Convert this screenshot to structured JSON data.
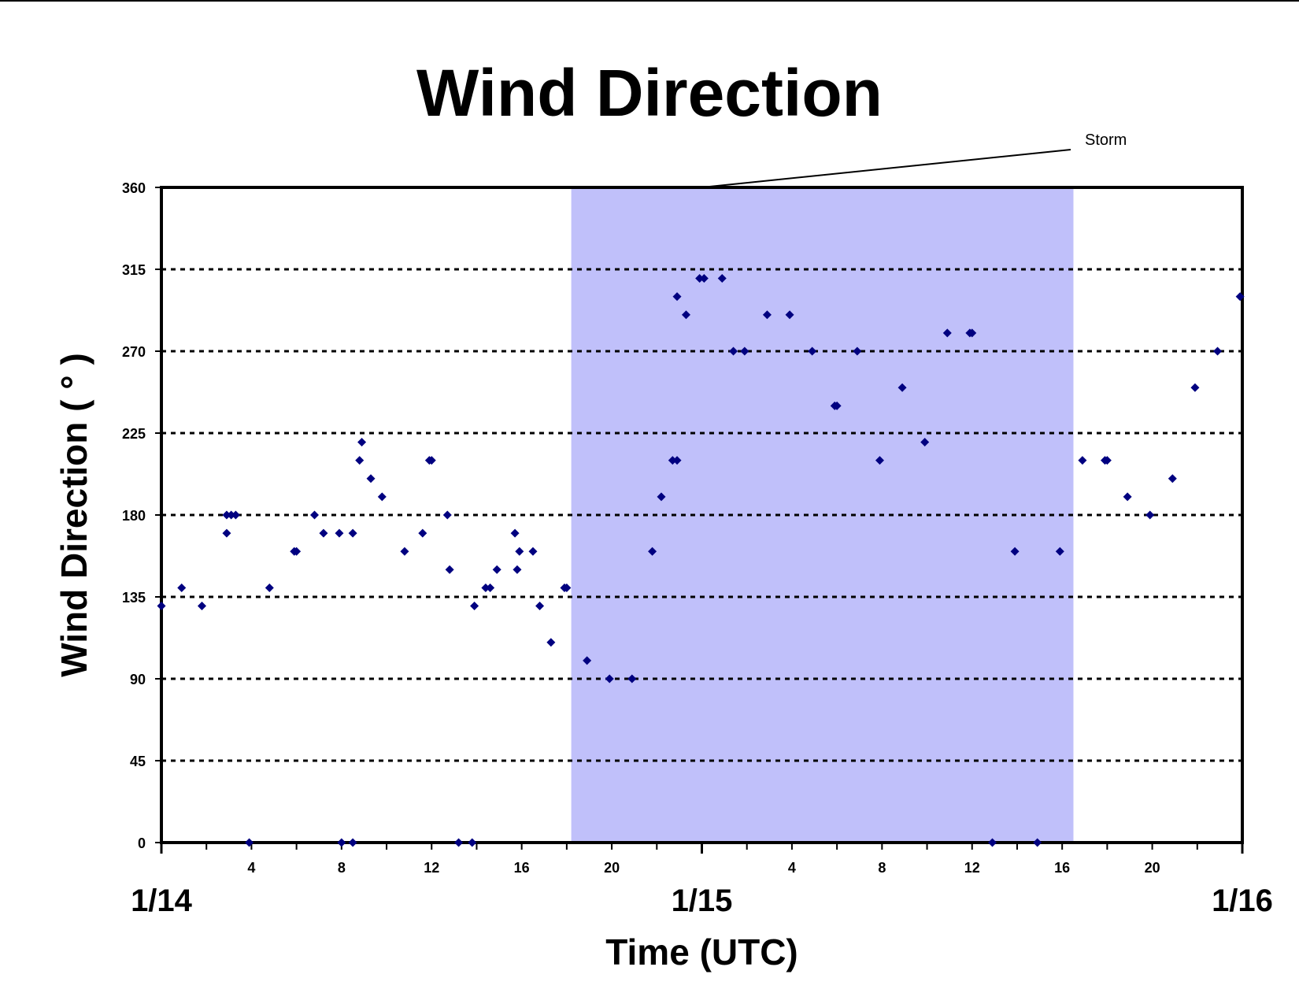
{
  "chart_data": {
    "type": "scatter",
    "title": "Wind Direction",
    "xlabel": "Time (UTC)",
    "ylabel": "Wind Direction ( ° )",
    "ylim": [
      0,
      360
    ],
    "y_ticks": [
      0,
      45,
      90,
      135,
      180,
      225,
      270,
      315,
      360
    ],
    "xlim_hours": [
      0,
      48
    ],
    "x_tick_labels": [
      {
        "hour": 4,
        "label": "4"
      },
      {
        "hour": 8,
        "label": "8"
      },
      {
        "hour": 12,
        "label": "12"
      },
      {
        "hour": 16,
        "label": "16"
      },
      {
        "hour": 20,
        "label": "20"
      },
      {
        "hour": 28,
        "label": "4"
      },
      {
        "hour": 32,
        "label": "8"
      },
      {
        "hour": 36,
        "label": "12"
      },
      {
        "hour": 40,
        "label": "16"
      },
      {
        "hour": 44,
        "label": "20"
      }
    ],
    "day_labels": [
      {
        "hour": 0,
        "label": "1/14"
      },
      {
        "hour": 24,
        "label": "1/15"
      },
      {
        "hour": 48,
        "label": "1/16"
      }
    ],
    "grid": "horizontal dotted",
    "annotation": {
      "text": "Storm",
      "start_hour": 18.2,
      "end_hour": 40.5
    },
    "colors": {
      "marker": "#000080",
      "storm_band": "#c0c0fa",
      "grid": "#000000"
    },
    "points": [
      {
        "x": 0.0,
        "y": 130
      },
      {
        "x": 0.9,
        "y": 140
      },
      {
        "x": 1.8,
        "y": 130
      },
      {
        "x": 2.9,
        "y": 170
      },
      {
        "x": 2.9,
        "y": 180
      },
      {
        "x": 3.1,
        "y": 180
      },
      {
        "x": 3.3,
        "y": 180
      },
      {
        "x": 3.9,
        "y": 0
      },
      {
        "x": 4.8,
        "y": 140
      },
      {
        "x": 5.9,
        "y": 160
      },
      {
        "x": 6.0,
        "y": 160
      },
      {
        "x": 6.8,
        "y": 180
      },
      {
        "x": 7.2,
        "y": 170
      },
      {
        "x": 7.9,
        "y": 170
      },
      {
        "x": 8.0,
        "y": 0
      },
      {
        "x": 8.5,
        "y": 0
      },
      {
        "x": 8.5,
        "y": 170
      },
      {
        "x": 8.8,
        "y": 210
      },
      {
        "x": 8.9,
        "y": 220
      },
      {
        "x": 9.3,
        "y": 200
      },
      {
        "x": 9.8,
        "y": 190
      },
      {
        "x": 10.8,
        "y": 160
      },
      {
        "x": 11.6,
        "y": 170
      },
      {
        "x": 11.9,
        "y": 210
      },
      {
        "x": 12.0,
        "y": 210
      },
      {
        "x": 12.7,
        "y": 180
      },
      {
        "x": 12.8,
        "y": 150
      },
      {
        "x": 13.2,
        "y": 0
      },
      {
        "x": 13.8,
        "y": 0
      },
      {
        "x": 13.9,
        "y": 130
      },
      {
        "x": 14.4,
        "y": 140
      },
      {
        "x": 14.6,
        "y": 140
      },
      {
        "x": 14.9,
        "y": 150
      },
      {
        "x": 15.7,
        "y": 170
      },
      {
        "x": 15.8,
        "y": 150
      },
      {
        "x": 15.9,
        "y": 160
      },
      {
        "x": 16.5,
        "y": 160
      },
      {
        "x": 16.8,
        "y": 130
      },
      {
        "x": 17.3,
        "y": 110
      },
      {
        "x": 17.9,
        "y": 140
      },
      {
        "x": 18.0,
        "y": 140
      },
      {
        "x": 18.9,
        "y": 100
      },
      {
        "x": 19.9,
        "y": 90
      },
      {
        "x": 20.9,
        "y": 90
      },
      {
        "x": 21.8,
        "y": 160
      },
      {
        "x": 22.2,
        "y": 190
      },
      {
        "x": 22.7,
        "y": 210
      },
      {
        "x": 22.9,
        "y": 210
      },
      {
        "x": 22.9,
        "y": 300
      },
      {
        "x": 23.3,
        "y": 290
      },
      {
        "x": 23.9,
        "y": 310
      },
      {
        "x": 24.1,
        "y": 310
      },
      {
        "x": 24.9,
        "y": 310
      },
      {
        "x": 25.4,
        "y": 270
      },
      {
        "x": 25.9,
        "y": 270
      },
      {
        "x": 26.9,
        "y": 290
      },
      {
        "x": 27.9,
        "y": 290
      },
      {
        "x": 28.9,
        "y": 270
      },
      {
        "x": 29.9,
        "y": 240
      },
      {
        "x": 30.0,
        "y": 240
      },
      {
        "x": 30.9,
        "y": 270
      },
      {
        "x": 31.9,
        "y": 210
      },
      {
        "x": 32.9,
        "y": 250
      },
      {
        "x": 33.9,
        "y": 220
      },
      {
        "x": 34.9,
        "y": 280
      },
      {
        "x": 35.9,
        "y": 280
      },
      {
        "x": 36.0,
        "y": 280
      },
      {
        "x": 36.9,
        "y": 0
      },
      {
        "x": 37.9,
        "y": 160
      },
      {
        "x": 38.9,
        "y": 0
      },
      {
        "x": 39.9,
        "y": 160
      },
      {
        "x": 40.9,
        "y": 210
      },
      {
        "x": 41.9,
        "y": 210
      },
      {
        "x": 42.0,
        "y": 210
      },
      {
        "x": 42.9,
        "y": 190
      },
      {
        "x": 43.9,
        "y": 180
      },
      {
        "x": 44.9,
        "y": 200
      },
      {
        "x": 45.9,
        "y": 250
      },
      {
        "x": 46.9,
        "y": 270
      },
      {
        "x": 47.9,
        "y": 300
      }
    ]
  }
}
